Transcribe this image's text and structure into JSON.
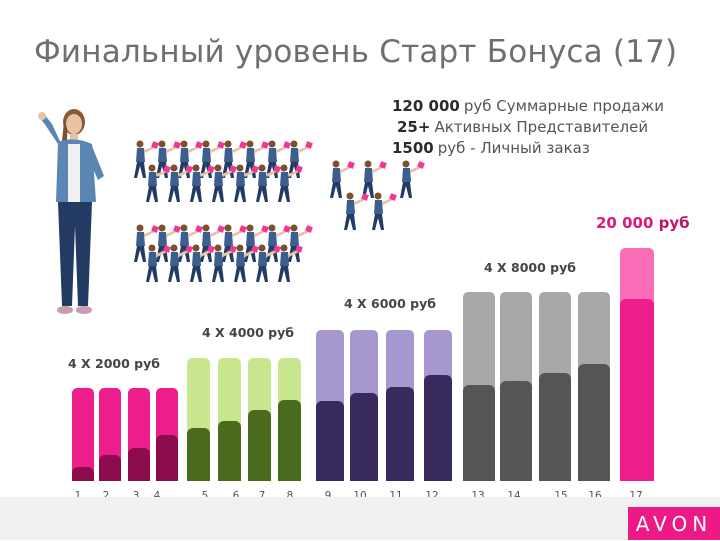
{
  "title": "Финальный уровень Старт Бонуса (17)",
  "requirements": [
    {
      "value": "120 000",
      "text": "руб Суммарные продажи"
    },
    {
      "value": "25+",
      "text": "Активных Представителей"
    },
    {
      "value": "1500",
      "text": "руб - Личный заказ"
    }
  ],
  "groups": [
    {
      "label": "4 X 2000 руб"
    },
    {
      "label": "4 X 4000 руб"
    },
    {
      "label": "4 X 6000 руб"
    },
    {
      "label": "4 X 8000 руб"
    }
  ],
  "prize": {
    "value": "20 000",
    "suffix": "руб"
  },
  "ticks": [
    "1",
    "2",
    "3",
    "4",
    "5",
    "6",
    "7",
    "8",
    "9",
    "10",
    "11",
    "12",
    "13",
    "14",
    "15",
    "16",
    "17"
  ],
  "bars": [
    {
      "level": 0.15
    },
    {
      "level": 0.28
    },
    {
      "level": 0.36
    },
    {
      "level": 0.5
    },
    {
      "level": 0.43
    },
    {
      "level": 0.49
    },
    {
      "level": 0.58
    },
    {
      "level": 0.66
    },
    {
      "level": 0.53
    },
    {
      "level": 0.58
    },
    {
      "level": 0.62
    },
    {
      "level": 0.7
    },
    {
      "level": 0.51
    },
    {
      "level": 0.53
    },
    {
      "level": 0.57
    },
    {
      "level": 0.62
    },
    {
      "level": 0.78
    }
  ],
  "colors": {
    "pink_bright": "#ed1e8c",
    "pink_dark": "#8c0b4c",
    "green_light": "#c9e58e",
    "green_dark": "#4a6a1e",
    "purple_light": "#a797cf",
    "purple_dark": "#382a5c",
    "gray_light": "#a8a8a8",
    "gray_dark": "#555555",
    "prize_light": "#fb6db7",
    "prize_dark": "#ed1e8c",
    "brand": "#ed1a86"
  },
  "brand": "AVON"
}
